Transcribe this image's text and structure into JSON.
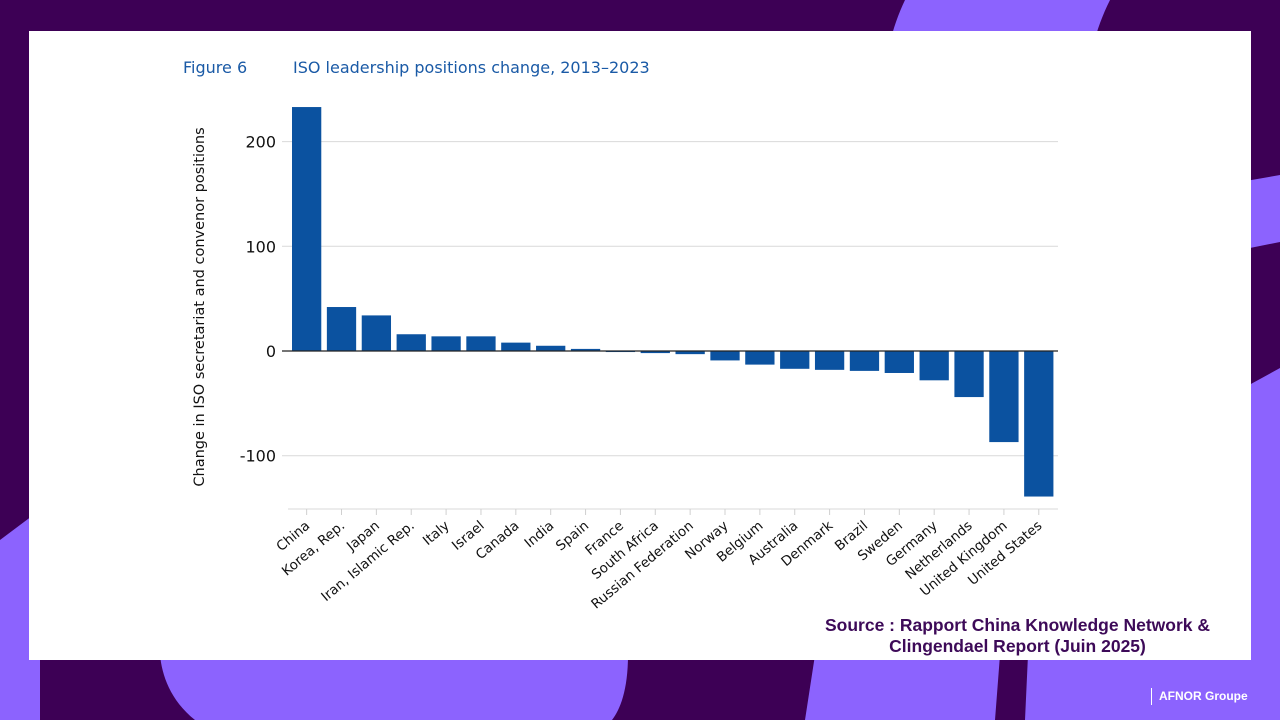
{
  "slide": {
    "colors": {
      "dark_purple": "#3d0055",
      "light_purple": "#8c63fe",
      "panel": "#ffffff"
    },
    "source_line1": "Source : Rapport China Knowledge Network &",
    "source_line2": "Clingendael Report (Juin 2025)",
    "footer": "AFNOR Groupe"
  },
  "figure": {
    "number": "Figure 6",
    "title": "ISO leadership positions change, 2013–2023"
  },
  "chart_data": {
    "type": "bar",
    "title": "ISO leadership positions change, 2013–2023",
    "xlabel": "",
    "ylabel": "Change in ISO secretariat and convenor positions",
    "ylim": [
      -150,
      235
    ],
    "yticks": [
      -100,
      0,
      100,
      200
    ],
    "grid": true,
    "bar_color": "#0b52a0",
    "categories": [
      "China",
      "Korea, Rep.",
      "Japan",
      "Iran, Islamic Rep.",
      "Italy",
      "Israel",
      "Canada",
      "India",
      "Spain",
      "France",
      "South Africa",
      "Russian Federation",
      "Norway",
      "Belgium",
      "Australia",
      "Denmark",
      "Brazil",
      "Sweden",
      "Germany",
      "Netherlands",
      "United Kingdom",
      "United States"
    ],
    "values": [
      233,
      42,
      34,
      16,
      14,
      14,
      8,
      5,
      2,
      -1,
      -2,
      -3,
      -9,
      -13,
      -17,
      -18,
      -19,
      -21,
      -28,
      -44,
      -87,
      -139
    ]
  }
}
